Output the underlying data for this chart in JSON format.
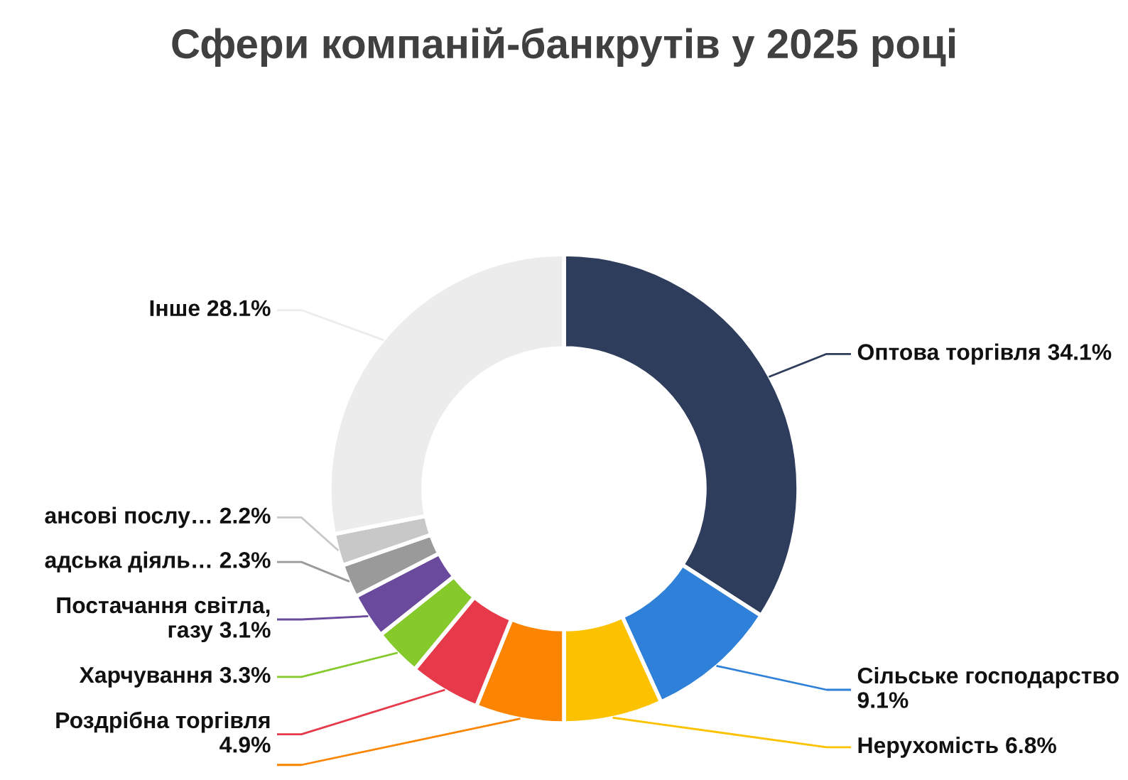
{
  "chart_data": {
    "type": "donut",
    "title": "Сфери компаній-банкрутів у 2025 році",
    "categories": [
      "Оптова торгівля",
      "Сільське господарство",
      "Нерухомість",
      null,
      "Роздрібна торгівля",
      "Харчування",
      "Постачання світла, газу",
      "адська діяль…",
      "ансові послу…",
      "Інше"
    ],
    "values": [
      34.1,
      9.1,
      6.8,
      6.1,
      4.9,
      3.3,
      3.1,
      2.3,
      2.2,
      28.1
    ],
    "colors": [
      "#2e3d5c",
      "#2f80d8",
      "#fcc200",
      "#fb8500",
      "#e63a4a",
      "#85c92a",
      "#6a4a9c",
      "#9a9a9a",
      "#c8c8c8",
      "#ececec"
    ],
    "value_labels": [
      "34.1%",
      "9.1%",
      "6.8%",
      null,
      "4.9%",
      "3.3%",
      "3.1%",
      "2.3%",
      "2.2%",
      "28.1%"
    ],
    "legend": false
  }
}
